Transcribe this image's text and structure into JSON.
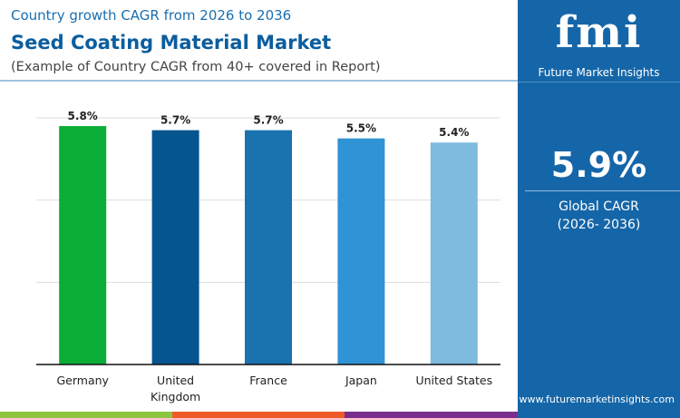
{
  "header": {
    "subtitle": "Country growth CAGR from 2026 to 2036",
    "title": "Seed Coating Material Market",
    "note": "(Example of Country CAGR from 40+ covered in Report)"
  },
  "panel": {
    "logo": "fmi",
    "brand": "Future Market Insights",
    "value": "5.9%",
    "label": "Global CAGR",
    "period": "(2026- 2036)",
    "url": "www.futuremarketinsights.com"
  },
  "colors": {
    "panel": "#1566a8",
    "bottom_bar": [
      "#8cc63f",
      "#f05a28",
      "#7b2d8e"
    ]
  },
  "chart_data": {
    "type": "bar",
    "categories": [
      "Germany",
      "United Kingdom",
      "France",
      "Japan",
      "United States"
    ],
    "values": [
      5.8,
      5.7,
      5.7,
      5.5,
      5.4
    ],
    "labels": [
      "5.8%",
      "5.7%",
      "5.7%",
      "5.5%",
      "5.4%"
    ],
    "colors": [
      "#0aad36",
      "#05558f",
      "#1a72ae",
      "#2f93d5",
      "#7fbadf"
    ],
    "ylim": [
      0,
      6
    ],
    "grid": true,
    "xlabel": "",
    "ylabel": ""
  }
}
